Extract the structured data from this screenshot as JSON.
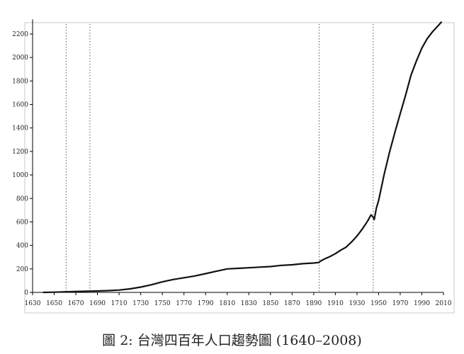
{
  "caption": "圖 2: 台灣四百年人口趨勢圖 (1640–2008)",
  "chart_data": {
    "type": "line",
    "title": "",
    "xlabel": "",
    "ylabel": "",
    "xlim": [
      1630,
      2010
    ],
    "ylim": [
      0,
      2300
    ],
    "x_ticks": [
      1630,
      1650,
      1670,
      1690,
      1710,
      1730,
      1750,
      1770,
      1790,
      1810,
      1830,
      1850,
      1870,
      1890,
      1910,
      1930,
      1950,
      1970,
      1990,
      2010
    ],
    "x_tick_labels": [
      "1630",
      "1650",
      "1670",
      "1690",
      "1710",
      "1730",
      "1750",
      "1770",
      "1790",
      "1810",
      "1830",
      "1850",
      "1870",
      "1890",
      "1910",
      "1930",
      "1950",
      "1970",
      "1990",
      "2010"
    ],
    "y_ticks": [
      0,
      200,
      400,
      600,
      800,
      1000,
      1200,
      1400,
      1600,
      1800,
      2000,
      2200
    ],
    "y_tick_labels": [
      "0",
      "200",
      "400",
      "600",
      "800",
      "1000",
      "1200",
      "1400",
      "1600",
      "1800",
      "2000",
      "2200"
    ],
    "grid": false,
    "reference_lines_x": [
      1661,
      1683,
      1895,
      1945
    ],
    "line_color": "#111111",
    "series": [
      {
        "x": [
          1640,
          1650,
          1660,
          1670,
          1680,
          1690,
          1700,
          1710,
          1720,
          1730,
          1740,
          1750,
          1760,
          1770,
          1780,
          1790,
          1800,
          1810,
          1820,
          1830,
          1840,
          1850,
          1860,
          1870,
          1880,
          1890,
          1895,
          1896,
          1900,
          1905,
          1910,
          1915,
          1920,
          1925,
          1930,
          1935,
          1940,
          1943,
          1945,
          1946,
          1947,
          1948,
          1950,
          1955,
          1960,
          1965,
          1970,
          1975,
          1980,
          1985,
          1990,
          1995,
          2000,
          2005,
          2008
        ],
        "values": [
          0,
          2,
          5,
          8,
          10,
          12,
          15,
          20,
          30,
          45,
          65,
          90,
          110,
          125,
          140,
          160,
          180,
          200,
          205,
          210,
          215,
          220,
          230,
          235,
          245,
          250,
          255,
          265,
          285,
          305,
          330,
          360,
          385,
          430,
          480,
          540,
          610,
          660,
          640,
          620,
          670,
          720,
          780,
          1000,
          1190,
          1360,
          1520,
          1680,
          1850,
          1970,
          2080,
          2160,
          2220,
          2270,
          2300
        ]
      }
    ]
  }
}
